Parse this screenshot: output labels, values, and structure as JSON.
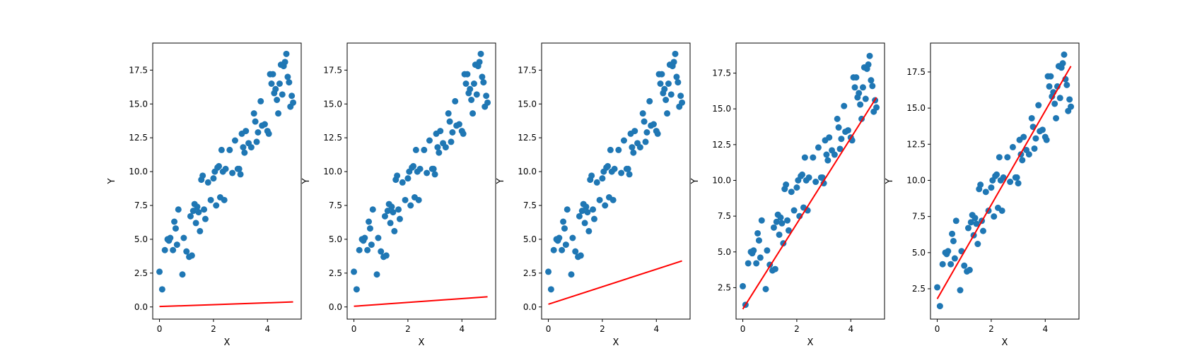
{
  "scatter_points": {
    "x": [
      0.0,
      0.1,
      0.2,
      0.3,
      0.35,
      0.4,
      0.5,
      0.55,
      0.6,
      0.65,
      0.7,
      0.85,
      0.9,
      1.0,
      1.1,
      1.15,
      1.2,
      1.25,
      1.3,
      1.35,
      1.4,
      1.45,
      1.5,
      1.55,
      1.6,
      1.65,
      1.7,
      1.8,
      1.9,
      2.0,
      2.05,
      2.1,
      2.15,
      2.2,
      2.25,
      2.3,
      2.35,
      2.4,
      2.45,
      2.6,
      2.7,
      2.8,
      2.9,
      2.95,
      3.0,
      3.05,
      3.1,
      3.15,
      3.2,
      3.3,
      3.4,
      3.5,
      3.55,
      3.6,
      3.65,
      3.75,
      3.8,
      3.9,
      4.0,
      4.05,
      4.1,
      4.15,
      4.2,
      4.25,
      4.3,
      4.35,
      4.4,
      4.45,
      4.5,
      4.55,
      4.6,
      4.65,
      4.7,
      4.75,
      4.8,
      4.85,
      4.9,
      4.95
    ],
    "y": [
      2.6,
      1.3,
      4.2,
      5.0,
      4.9,
      5.1,
      4.2,
      6.3,
      5.8,
      4.6,
      7.2,
      2.4,
      5.1,
      4.1,
      3.7,
      6.7,
      3.8,
      7.1,
      7.6,
      6.2,
      7.4,
      7.0,
      5.6,
      9.4,
      9.7,
      7.2,
      6.5,
      9.2,
      7.9,
      9.5,
      10.0,
      7.5,
      10.3,
      10.4,
      8.1,
      11.6,
      10.0,
      7.9,
      10.2,
      11.6,
      9.9,
      12.3,
      10.2,
      10.2,
      9.8,
      12.8,
      11.8,
      11.4,
      13.0,
      12.1,
      11.8,
      14.3,
      13.7,
      12.2,
      12.9,
      15.2,
      13.4,
      13.5,
      13.0,
      12.8,
      17.2,
      16.5,
      17.2,
      15.8,
      16.1,
      15.3,
      14.3,
      16.5,
      17.9,
      15.7,
      17.8,
      18.1,
      18.7,
      17.0,
      16.6,
      14.8,
      15.6,
      15.1
    ]
  },
  "chart_data": [
    {
      "type": "scatter",
      "xlabel": "X",
      "ylabel": "Y",
      "xlim": [
        -0.25,
        5.25
      ],
      "ylim": [
        -0.9,
        19.5
      ],
      "xticks": [
        "0",
        "2",
        "4"
      ],
      "yticks": [
        "0.0",
        "2.5",
        "5.0",
        "7.5",
        "10.0",
        "12.5",
        "15.0",
        "17.5"
      ],
      "fit_line": {
        "x": [
          0,
          4.95
        ],
        "y": [
          0.03,
          0.37
        ]
      },
      "colors": {
        "points": "#1f77b4",
        "line": "#ff0000"
      }
    },
    {
      "type": "scatter",
      "xlabel": "X",
      "ylabel": "Y",
      "xlim": [
        -0.25,
        5.25
      ],
      "ylim": [
        -0.9,
        19.5
      ],
      "xticks": [
        "0",
        "2",
        "4"
      ],
      "yticks": [
        "0.0",
        "2.5",
        "5.0",
        "7.5",
        "10.0",
        "12.5",
        "15.0",
        "17.5"
      ],
      "fit_line": {
        "x": [
          0,
          4.95
        ],
        "y": [
          0.05,
          0.75
        ]
      },
      "colors": {
        "points": "#1f77b4",
        "line": "#ff0000"
      }
    },
    {
      "type": "scatter",
      "xlabel": "X",
      "ylabel": "Y",
      "xlim": [
        -0.25,
        5.25
      ],
      "ylim": [
        -0.9,
        19.5
      ],
      "xticks": [
        "0",
        "2",
        "4"
      ],
      "yticks": [
        "0.0",
        "2.5",
        "5.0",
        "7.5",
        "10.0",
        "12.5",
        "15.0",
        "17.5"
      ],
      "fit_line": {
        "x": [
          0,
          4.95
        ],
        "y": [
          0.2,
          3.4
        ]
      },
      "colors": {
        "points": "#1f77b4",
        "line": "#ff0000"
      }
    },
    {
      "type": "scatter",
      "xlabel": "X",
      "ylabel": "Y",
      "xlim": [
        -0.25,
        5.25
      ],
      "ylim": [
        0.3,
        19.6
      ],
      "xticks": [
        "0",
        "2",
        "4"
      ],
      "yticks": [
        "2.5",
        "5.0",
        "7.5",
        "10.0",
        "12.5",
        "15.0",
        "17.5"
      ],
      "fit_line": {
        "x": [
          0,
          4.95
        ],
        "y": [
          1.0,
          15.8
        ]
      },
      "colors": {
        "points": "#1f77b4",
        "line": "#ff0000"
      }
    },
    {
      "type": "scatter",
      "xlabel": "X",
      "ylabel": "Y",
      "xlim": [
        -0.25,
        5.25
      ],
      "ylim": [
        0.4,
        19.5
      ],
      "xticks": [
        "0",
        "2",
        "4"
      ],
      "yticks": [
        "2.5",
        "5.0",
        "7.5",
        "10.0",
        "12.5",
        "15.0",
        "17.5"
      ],
      "fit_line": {
        "x": [
          0,
          4.95
        ],
        "y": [
          1.8,
          17.9
        ]
      },
      "colors": {
        "points": "#1f77b4",
        "line": "#ff0000"
      }
    }
  ]
}
